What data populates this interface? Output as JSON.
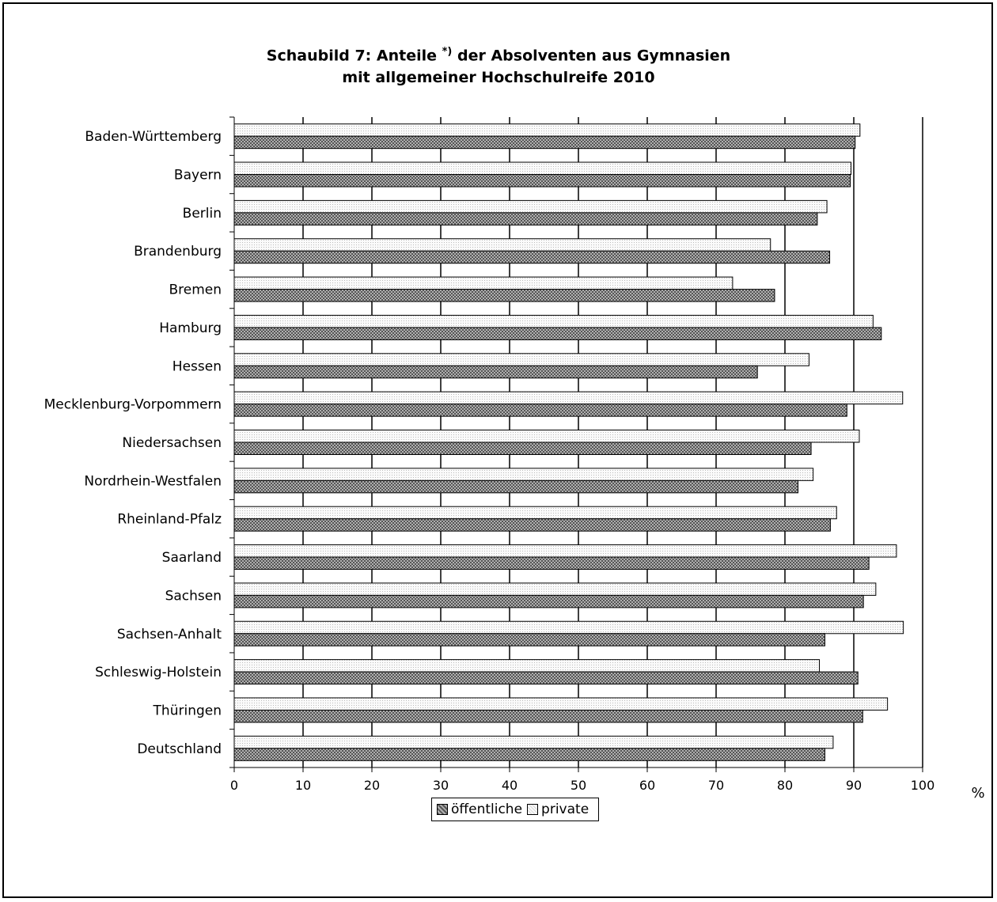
{
  "chart_data": {
    "type": "bar",
    "orientation": "horizontal",
    "title_line1_prefix": "Schaubild 7: Anteile",
    "title_footnote": "*)",
    "title_line1_suffix": "der Absolventen aus Gymnasien",
    "title_line2": "mit allgemeiner Hochschulreife 2010",
    "xlabel": "%",
    "xlim": [
      0,
      100
    ],
    "xticks": [
      0,
      10,
      20,
      30,
      40,
      50,
      60,
      70,
      80,
      90,
      100
    ],
    "grid": "vertical",
    "legend_position": "bottom",
    "categories": [
      "Baden-Württemberg",
      "Bayern",
      "Berlin",
      "Brandenburg",
      "Bremen",
      "Hamburg",
      "Hessen",
      "Mecklenburg-Vorpommern",
      "Niedersachsen",
      "Nordrhein-Westfalen",
      "Rheinland-Pfalz",
      "Saarland",
      "Sachsen",
      "Sachsen-Anhalt",
      "Schleswig-Holstein",
      "Thüringen",
      "Deutschland"
    ],
    "series": [
      {
        "name": "öffentliche",
        "values": [
          90.2,
          89.5,
          84.7,
          86.5,
          78.5,
          94.0,
          76.0,
          89.0,
          83.8,
          81.9,
          86.6,
          92.2,
          91.4,
          85.8,
          90.6,
          91.3,
          85.8
        ]
      },
      {
        "name": "private",
        "values": [
          90.9,
          89.6,
          86.1,
          77.9,
          72.4,
          92.8,
          83.5,
          97.1,
          90.8,
          84.1,
          87.5,
          96.2,
          93.2,
          97.2,
          85.0,
          94.9,
          87.0
        ]
      }
    ]
  },
  "colors": {
    "public_dark": "#555555",
    "public_light": "#b0b0b0",
    "private_dark": "#cfcfcf",
    "private_light": "#fafafa",
    "grid": "#000000"
  }
}
